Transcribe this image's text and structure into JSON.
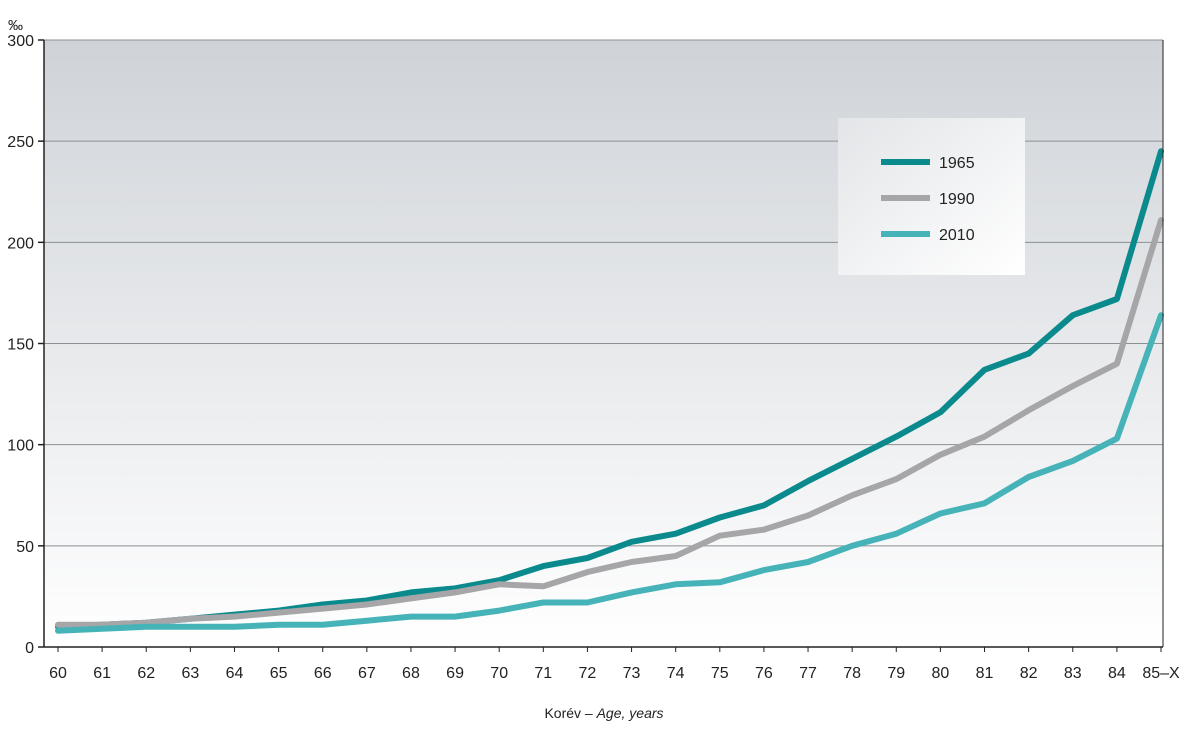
{
  "chart_data": {
    "type": "line",
    "y_unit": "‰",
    "xlabel": {
      "main": "Korév – ",
      "italic": "Age, years"
    },
    "x_tick_labels": [
      "60",
      "61",
      "62",
      "63",
      "64",
      "65",
      "66",
      "67",
      "68",
      "69",
      "70",
      "71",
      "72",
      "73",
      "74",
      "75",
      "76",
      "77",
      "78",
      "79",
      "80",
      "81",
      "82",
      "83",
      "84",
      "85–X"
    ],
    "ylim": [
      0,
      300
    ],
    "yticks": [
      0,
      50,
      100,
      150,
      200,
      250,
      300
    ],
    "grid": "horizontal",
    "legend_position": "top-right",
    "x": [
      60,
      61,
      62,
      63,
      64,
      65,
      66,
      67,
      68,
      69,
      70,
      71,
      72,
      73,
      74,
      75,
      76,
      77,
      78,
      79,
      80,
      81,
      82,
      83,
      84,
      85
    ],
    "series": [
      {
        "name": "1965",
        "color": "#0a8a8c",
        "values": [
          10,
          11,
          12,
          14,
          16,
          18,
          21,
          23,
          27,
          29,
          33,
          40,
          44,
          52,
          56,
          64,
          70,
          82,
          93,
          104,
          116,
          137,
          145,
          164,
          172,
          245
        ]
      },
      {
        "name": "1990",
        "color": "#a6a6a8",
        "values": [
          11,
          11,
          12,
          14,
          15,
          17,
          19,
          21,
          24,
          27,
          31,
          30,
          37,
          42,
          45,
          55,
          58,
          65,
          75,
          83,
          95,
          104,
          117,
          129,
          140,
          211
        ]
      },
      {
        "name": "2010",
        "color": "#46b3b8",
        "values": [
          8,
          9,
          10,
          10,
          10,
          11,
          11,
          13,
          15,
          15,
          18,
          22,
          22,
          27,
          31,
          32,
          38,
          42,
          50,
          56,
          66,
          71,
          84,
          92,
          103,
          164
        ]
      }
    ]
  }
}
